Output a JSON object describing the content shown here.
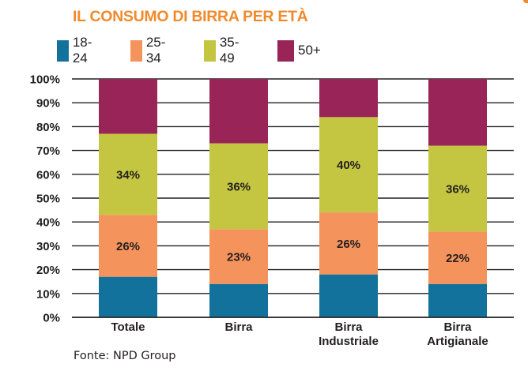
{
  "chart_data": {
    "type": "bar",
    "stacked": true,
    "title": "IL CONSUMO DI BIRRA PER ETÀ",
    "xlabel": "",
    "ylabel": "",
    "ylim": [
      0,
      100
    ],
    "y_ticks": [
      "0%",
      "10%",
      "20%",
      "30%",
      "40%",
      "50%",
      "60%",
      "70%",
      "80%",
      "90%",
      "100%"
    ],
    "grid": true,
    "legend_position": "top",
    "categories": [
      [
        "Totale"
      ],
      [
        "Birra"
      ],
      [
        "Birra",
        "Industriale"
      ],
      [
        "Birra",
        "Artigianale"
      ]
    ],
    "series": [
      {
        "name": "18-24",
        "color": "#13729b",
        "values": [
          17,
          14,
          18,
          14
        ],
        "labels": [
          "",
          "",
          "",
          ""
        ]
      },
      {
        "name": "25-34",
        "color": "#f5935c",
        "values": [
          26,
          23,
          26,
          22
        ],
        "labels": [
          "26%",
          "23%",
          "26%",
          "22%"
        ]
      },
      {
        "name": "35-49",
        "color": "#c4c641",
        "values": [
          34,
          36,
          40,
          36
        ],
        "labels": [
          "34%",
          "36%",
          "40%",
          "36%"
        ]
      },
      {
        "name": "50+",
        "color": "#982458",
        "values": [
          23,
          27,
          16,
          28
        ],
        "labels": [
          "",
          "",
          "",
          ""
        ]
      }
    ],
    "source": "Fonte: NPD Group"
  },
  "colors": {
    "title": "#f08a2c",
    "text": "#231f20",
    "grid": "#231f20"
  }
}
